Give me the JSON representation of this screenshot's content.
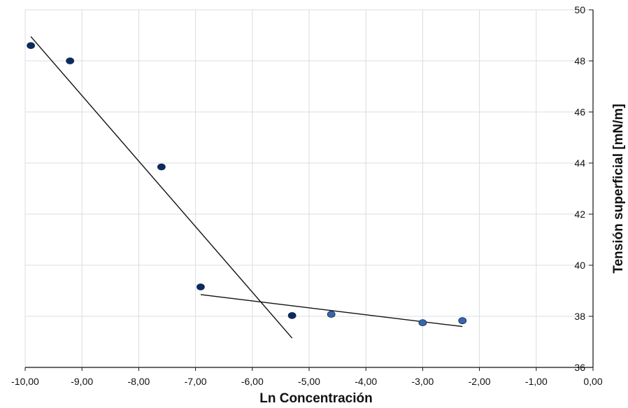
{
  "chart_data": {
    "type": "scatter",
    "xlabel": "Ln Concentración",
    "ylabel": "Tensión superficial [mN/m]",
    "xlim": [
      -10,
      0
    ],
    "ylim": [
      36,
      50
    ],
    "x_ticks": [
      -10,
      -9,
      -8,
      -7,
      -6,
      -5,
      -4,
      -3,
      -2,
      -1,
      0
    ],
    "x_tick_labels": [
      "-10,00",
      "-9,00",
      "-8,00",
      "-7,00",
      "-6,00",
      "-5,00",
      "-4,00",
      "-3,00",
      "-2,00",
      "-1,00",
      "0,00"
    ],
    "y_ticks": [
      36,
      38,
      40,
      42,
      44,
      46,
      48,
      50
    ],
    "y_tick_labels": [
      "36",
      "38",
      "40",
      "42",
      "44",
      "46",
      "48",
      "50"
    ],
    "y_axis_position": "right",
    "grid": true,
    "series": [
      {
        "marker_color": "#0d2a5c",
        "points": [
          {
            "x": -9.9,
            "y": 48.6
          },
          {
            "x": -9.21,
            "y": 48.0
          },
          {
            "x": -7.6,
            "y": 43.85
          },
          {
            "x": -6.91,
            "y": 39.15
          },
          {
            "x": -5.3,
            "y": 38.03
          }
        ]
      },
      {
        "marker_color": "#3a66a8",
        "points": [
          {
            "x": -4.61,
            "y": 38.08
          },
          {
            "x": -3.0,
            "y": 37.75
          },
          {
            "x": -2.3,
            "y": 37.83
          }
        ]
      }
    ],
    "trendlines": [
      {
        "x1": -9.9,
        "y1": 48.95,
        "x2": -5.3,
        "y2": 37.15
      },
      {
        "x1": -6.91,
        "y1": 38.85,
        "x2": -2.3,
        "y2": 37.6
      }
    ],
    "colors": {
      "grid": "#d9dde2",
      "axis": "#111111",
      "trendline": "#111111"
    }
  }
}
